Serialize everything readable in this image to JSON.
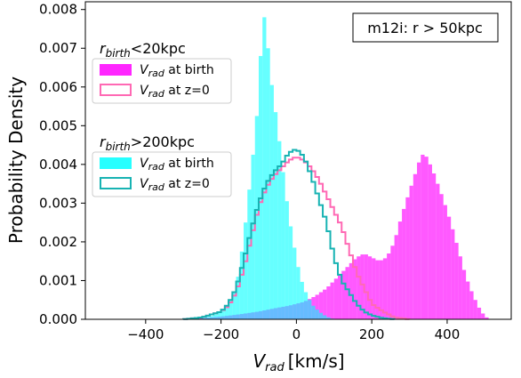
{
  "chart_data": {
    "type": "histogram",
    "annotation": "m12i: r > 50kpc",
    "xlabel_main": "V",
    "xlabel_sub": "rad",
    "xlabel_unit": "[km/s]",
    "ylabel": "Probability Density",
    "xlim": [
      -560,
      570
    ],
    "ylim": [
      0,
      0.0082
    ],
    "xticks": [
      -400,
      -200,
      0,
      200,
      400
    ],
    "xtick_labels": [
      "−400",
      "−200",
      "0",
      "200",
      "400"
    ],
    "yticks": [
      0.0,
      0.001,
      0.002,
      0.003,
      0.004,
      0.005,
      0.006,
      0.007,
      0.008
    ],
    "ytick_labels": [
      "0.000",
      "0.001",
      "0.002",
      "0.003",
      "0.004",
      "0.005",
      "0.006",
      "0.007",
      "0.008"
    ],
    "bin_width": 10,
    "legend_groups": [
      {
        "title_main": "r",
        "title_sub": "birth",
        "title_rest": "<20kpc",
        "entries": [
          {
            "main": "V",
            "sub": "rad",
            "rest": " at birth",
            "style": "filled",
            "color": "#ff00ff"
          },
          {
            "main": "V",
            "sub": "rad",
            "rest": " at z=0",
            "style": "step",
            "color": "#ff69b4"
          }
        ]
      },
      {
        "title_main": "r",
        "title_sub": "birth",
        "title_rest": ">200kpc",
        "entries": [
          {
            "main": "V",
            "sub": "rad",
            "rest": " at birth",
            "style": "filled",
            "color": "#00ffff"
          },
          {
            "main": "V",
            "sub": "rad",
            "rest": " at z=0",
            "style": "step",
            "color": "#17b3b3"
          }
        ]
      }
    ],
    "series": [
      {
        "name": "r_birth<20kpc V_rad at birth",
        "style": "filled",
        "color": "#ff00ff",
        "opacity": 0.65,
        "points": [
          [
            -290,
            0
          ],
          [
            -250,
            3e-05
          ],
          [
            -200,
            7e-05
          ],
          [
            -150,
            0.00013
          ],
          [
            -100,
            0.0002
          ],
          [
            -60,
            0.00028
          ],
          [
            -20,
            0.00035
          ],
          [
            20,
            0.00045
          ],
          [
            50,
            0.0006
          ],
          [
            80,
            0.0008
          ],
          [
            110,
            0.0011
          ],
          [
            140,
            0.0014
          ],
          [
            160,
            0.0016
          ],
          [
            180,
            0.0017
          ],
          [
            200,
            0.0016
          ],
          [
            220,
            0.0015
          ],
          [
            240,
            0.0016
          ],
          [
            260,
            0.002
          ],
          [
            280,
            0.0027
          ],
          [
            300,
            0.0033
          ],
          [
            310,
            0.0036
          ],
          [
            320,
            0.0039
          ],
          [
            330,
            0.0042
          ],
          [
            340,
            0.0043
          ],
          [
            350,
            0.0041
          ],
          [
            360,
            0.0039
          ],
          [
            375,
            0.0035
          ],
          [
            390,
            0.0031
          ],
          [
            410,
            0.0025
          ],
          [
            430,
            0.0018
          ],
          [
            450,
            0.0011
          ],
          [
            470,
            0.0006
          ],
          [
            490,
            0.0002
          ],
          [
            510,
            0
          ]
        ]
      },
      {
        "name": "r_birth>200kpc V_rad at birth",
        "style": "filled",
        "color": "#00ffff",
        "opacity": 0.6,
        "points": [
          [
            -260,
            0
          ],
          [
            -220,
            0.0001
          ],
          [
            -200,
            0.0002
          ],
          [
            -180,
            0.0004
          ],
          [
            -160,
            0.0008
          ],
          [
            -150,
            0.0014
          ],
          [
            -140,
            0.0021
          ],
          [
            -130,
            0.0029
          ],
          [
            -120,
            0.0038
          ],
          [
            -110,
            0.0047
          ],
          [
            -100,
            0.0058
          ],
          [
            -95,
            0.0068
          ],
          [
            -90,
            0.0076
          ],
          [
            -85,
            0.0078
          ],
          [
            -80,
            0.0076
          ],
          [
            -75,
            0.007
          ],
          [
            -70,
            0.0064
          ],
          [
            -60,
            0.0057
          ],
          [
            -50,
            0.005
          ],
          [
            -40,
            0.0042
          ],
          [
            -30,
            0.0034
          ],
          [
            -20,
            0.0027
          ],
          [
            -10,
            0.0021
          ],
          [
            0,
            0.0016
          ],
          [
            10,
            0.0011
          ],
          [
            25,
            0.0007
          ],
          [
            40,
            0.0004
          ],
          [
            60,
            0.0002
          ],
          [
            80,
            7e-05
          ],
          [
            100,
            0
          ]
        ]
      },
      {
        "name": "r_birth<20kpc V_rad at z=0",
        "style": "step",
        "color": "#ff69b4",
        "points": [
          [
            -300,
            0
          ],
          [
            -250,
            5e-05
          ],
          [
            -200,
            0.0002
          ],
          [
            -180,
            0.00035
          ],
          [
            -160,
            0.0007
          ],
          [
            -140,
            0.0013
          ],
          [
            -120,
            0.0021
          ],
          [
            -100,
            0.0029
          ],
          [
            -80,
            0.0034
          ],
          [
            -60,
            0.0037
          ],
          [
            -40,
            0.0039
          ],
          [
            -20,
            0.0041
          ],
          [
            0,
            0.0042
          ],
          [
            20,
            0.0041
          ],
          [
            40,
            0.0039
          ],
          [
            60,
            0.0036
          ],
          [
            80,
            0.0032
          ],
          [
            100,
            0.0028
          ],
          [
            120,
            0.0024
          ],
          [
            140,
            0.0018
          ],
          [
            160,
            0.0012
          ],
          [
            180,
            0.0008
          ],
          [
            200,
            0.0004
          ],
          [
            230,
            0.0002
          ],
          [
            260,
            5e-05
          ],
          [
            300,
            0
          ]
        ]
      },
      {
        "name": "r_birth>200kpc V_rad at z=0",
        "style": "step",
        "color": "#17b3b3",
        "points": [
          [
            -300,
            0
          ],
          [
            -250,
            5e-05
          ],
          [
            -200,
            0.0002
          ],
          [
            -180,
            0.0004
          ],
          [
            -160,
            0.0008
          ],
          [
            -140,
            0.0015
          ],
          [
            -120,
            0.0023
          ],
          [
            -100,
            0.003
          ],
          [
            -80,
            0.0035
          ],
          [
            -60,
            0.0038
          ],
          [
            -40,
            0.004
          ],
          [
            -20,
            0.0043
          ],
          [
            0,
            0.0044
          ],
          [
            20,
            0.0042
          ],
          [
            40,
            0.0037
          ],
          [
            60,
            0.0031
          ],
          [
            80,
            0.0025
          ],
          [
            100,
            0.0016
          ],
          [
            120,
            0.001
          ],
          [
            140,
            0.0007
          ],
          [
            160,
            0.0004
          ],
          [
            180,
            0.0002
          ],
          [
            200,
            0.0001
          ],
          [
            230,
            3e-05
          ],
          [
            260,
            0
          ]
        ]
      }
    ]
  }
}
